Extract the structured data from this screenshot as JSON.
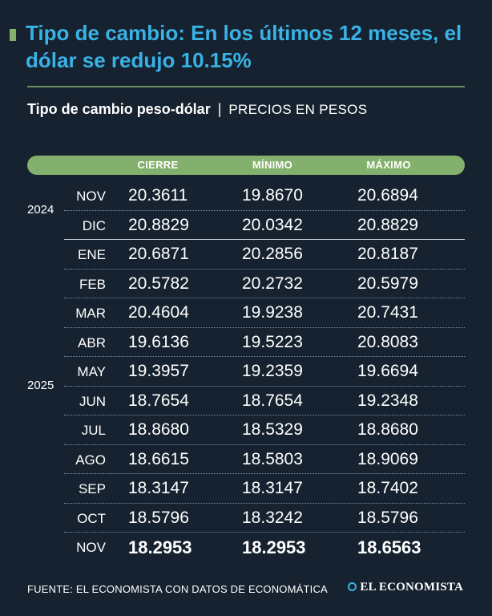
{
  "title": "Tipo de cambio: En los últimos 12 meses, el dólar se redujo 10.15%",
  "subtitle": {
    "main": "Tipo de cambio peso-dólar",
    "separator": "|",
    "units": "PRECIOS EN PESOS"
  },
  "colors": {
    "background": "#16222f",
    "title": "#39b2e6",
    "header": "#83b06c",
    "text": "#ffffff"
  },
  "chart_data": {
    "type": "table",
    "columns": [
      "CIERRE",
      "MÍNIMO",
      "MÁXIMO"
    ],
    "rows": [
      {
        "year": "2024",
        "month": "NOV",
        "cierre": "20.3611",
        "minimo": "19.8670",
        "maximo": "20.6894"
      },
      {
        "year": "2024",
        "month": "DIC",
        "cierre": "20.8829",
        "minimo": "20.0342",
        "maximo": "20.8829"
      },
      {
        "year": "2025",
        "month": "ENE",
        "cierre": "20.6871",
        "minimo": "20.2856",
        "maximo": "20.8187"
      },
      {
        "year": "2025",
        "month": "FEB",
        "cierre": "20.5782",
        "minimo": "20.2732",
        "maximo": "20.5979"
      },
      {
        "year": "2025",
        "month": "MAR",
        "cierre": "20.4604",
        "minimo": "19.9238",
        "maximo": "20.7431"
      },
      {
        "year": "2025",
        "month": "ABR",
        "cierre": "19.6136",
        "minimo": "19.5223",
        "maximo": "20.8083"
      },
      {
        "year": "2025",
        "month": "MAY",
        "cierre": "19.3957",
        "minimo": "19.2359",
        "maximo": "19.6694"
      },
      {
        "year": "2025",
        "month": "JUN",
        "cierre": "18.7654",
        "minimo": "18.7654",
        "maximo": "19.2348"
      },
      {
        "year": "2025",
        "month": "JUL",
        "cierre": "18.8680",
        "minimo": "18.5329",
        "maximo": "18.8680"
      },
      {
        "year": "2025",
        "month": "AGO",
        "cierre": "18.6615",
        "minimo": "18.5803",
        "maximo": "18.9069"
      },
      {
        "year": "2025",
        "month": "SEP",
        "cierre": "18.3147",
        "minimo": "18.3147",
        "maximo": "18.7402"
      },
      {
        "year": "2025",
        "month": "OCT",
        "cierre": "18.5796",
        "minimo": "18.3242",
        "maximo": "18.5796"
      },
      {
        "year": "2025",
        "month": "NOV",
        "cierre": "18.2953",
        "minimo": "18.2953",
        "maximo": "18.6563",
        "highlight": true
      }
    ]
  },
  "footer": {
    "source": "FUENTE: EL ECONOMISTA CON DATOS DE ECONOMÁTICA",
    "brand": "EL ECONOMISTA",
    "brand_icon": "globe-logo-icon"
  }
}
